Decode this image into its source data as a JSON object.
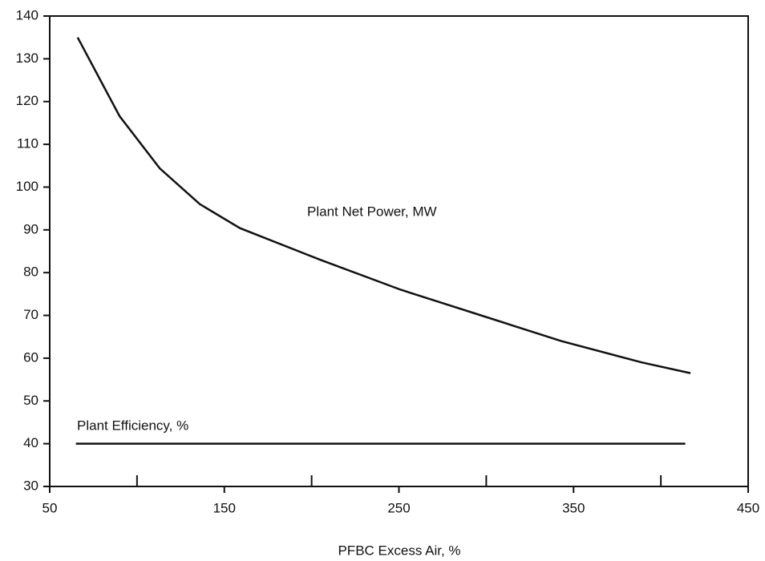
{
  "chart_data": {
    "type": "line",
    "xlabel": "PFBC Excess Air, %",
    "xlim": [
      50,
      450
    ],
    "xticks": [
      50,
      150,
      250,
      350,
      450
    ],
    "xminor_ticks": [
      100,
      200,
      300,
      400
    ],
    "ylim": [
      30,
      140
    ],
    "yticks": [
      30,
      40,
      50,
      60,
      70,
      80,
      90,
      100,
      110,
      120,
      130,
      140
    ],
    "grid": false,
    "series": [
      {
        "name": "Plant Net Power, MW",
        "color": "#111111",
        "x": [
          66,
          90,
          113,
          136,
          159,
          205,
          251,
          297,
          343,
          389,
          417
        ],
        "values": [
          135,
          116.6,
          104.4,
          96,
          90.4,
          83,
          76,
          70,
          64,
          59,
          56.5
        ]
      },
      {
        "name": "Plant Efficiency, %",
        "color": "#111111",
        "x": [
          65,
          414
        ],
        "values": [
          40,
          40
        ]
      }
    ]
  }
}
